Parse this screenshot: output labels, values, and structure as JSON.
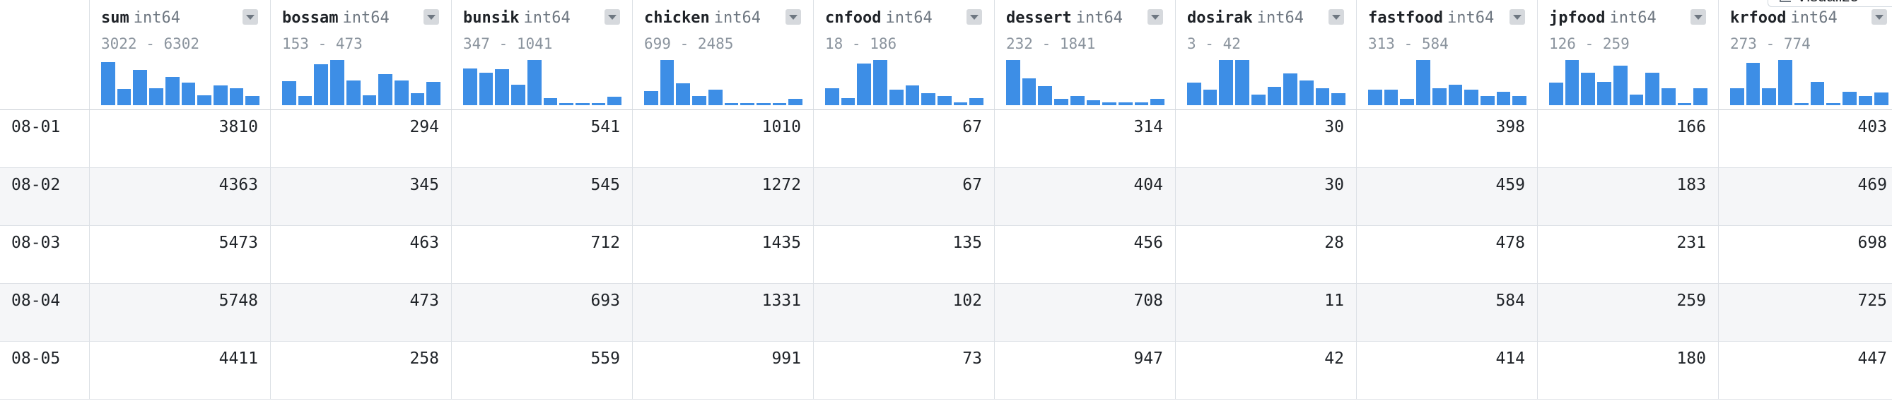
{
  "toolbar": {
    "visualize_label": "Visualize"
  },
  "columns": [
    {
      "name": "sum",
      "dtype": "int64",
      "range": "3022 - 6302",
      "hist": [
        0.95,
        0.36,
        0.78,
        0.37,
        0.62,
        0.5,
        0.22,
        0.44,
        0.38,
        0.2
      ]
    },
    {
      "name": "bossam",
      "dtype": "int64",
      "range": "153 - 473",
      "hist": [
        0.53,
        0.2,
        0.9,
        1.0,
        0.55,
        0.22,
        0.68,
        0.55,
        0.26,
        0.52
      ]
    },
    {
      "name": "bunsik",
      "dtype": "int64",
      "range": "347 - 1041",
      "hist": [
        0.82,
        0.72,
        0.8,
        0.45,
        1.0,
        0.16,
        0.04,
        0.04,
        0.04,
        0.18
      ]
    },
    {
      "name": "chicken",
      "dtype": "int64",
      "range": "699 - 2485",
      "hist": [
        0.32,
        1.0,
        0.48,
        0.2,
        0.34,
        0.04,
        0.04,
        0.04,
        0.04,
        0.14
      ]
    },
    {
      "name": "cnfood",
      "dtype": "int64",
      "range": "18 - 186",
      "hist": [
        0.38,
        0.16,
        0.92,
        1.0,
        0.34,
        0.44,
        0.27,
        0.2,
        0.07,
        0.16
      ]
    },
    {
      "name": "dessert",
      "dtype": "int64",
      "range": "232 - 1841",
      "hist": [
        1.0,
        0.6,
        0.42,
        0.14,
        0.2,
        0.11,
        0.06,
        0.06,
        0.06,
        0.14
      ]
    },
    {
      "name": "dosirak",
      "dtype": "int64",
      "range": "3 - 42",
      "hist": [
        0.5,
        0.35,
        1.0,
        1.0,
        0.24,
        0.4,
        0.7,
        0.55,
        0.38,
        0.26
      ]
    },
    {
      "name": "fastfood",
      "dtype": "int64",
      "range": "313 - 584",
      "hist": [
        0.35,
        0.35,
        0.14,
        1.0,
        0.38,
        0.45,
        0.35,
        0.2,
        0.3,
        0.2
      ]
    },
    {
      "name": "jpfood",
      "dtype": "int64",
      "range": "126 - 259",
      "hist": [
        0.5,
        1.0,
        0.72,
        0.52,
        0.88,
        0.24,
        0.72,
        0.38,
        0.04,
        0.38
      ]
    },
    {
      "name": "krfood",
      "dtype": "int64",
      "range": "273 - 774",
      "hist": [
        0.38,
        0.93,
        0.38,
        1.0,
        0.04,
        0.52,
        0.04,
        0.3,
        0.2,
        0.28
      ]
    }
  ],
  "rows": [
    {
      "index": "08-01",
      "values": [
        "3810",
        "294",
        "541",
        "1010",
        "67",
        "314",
        "30",
        "398",
        "166",
        "403"
      ]
    },
    {
      "index": "08-02",
      "values": [
        "4363",
        "345",
        "545",
        "1272",
        "67",
        "404",
        "30",
        "459",
        "183",
        "469"
      ]
    },
    {
      "index": "08-03",
      "values": [
        "5473",
        "463",
        "712",
        "1435",
        "135",
        "456",
        "28",
        "478",
        "231",
        "698"
      ]
    },
    {
      "index": "08-04",
      "values": [
        "5748",
        "473",
        "693",
        "1331",
        "102",
        "708",
        "11",
        "584",
        "259",
        "725"
      ]
    },
    {
      "index": "08-05",
      "values": [
        "4411",
        "258",
        "559",
        "991",
        "73",
        "947",
        "42",
        "414",
        "180",
        "447"
      ]
    }
  ]
}
